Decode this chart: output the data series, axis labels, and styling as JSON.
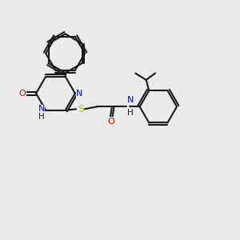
{
  "bg_color": "#ebebeb",
  "line_color": "#1a1a1a",
  "N_color": "#0000dd",
  "O_color": "#dd0000",
  "S_color": "#bbbb00",
  "lw": 1.5,
  "figsize": [
    3.0,
    3.0
  ],
  "dpi": 100,
  "xlim": [
    0,
    10
  ],
  "ylim": [
    0,
    10
  ]
}
